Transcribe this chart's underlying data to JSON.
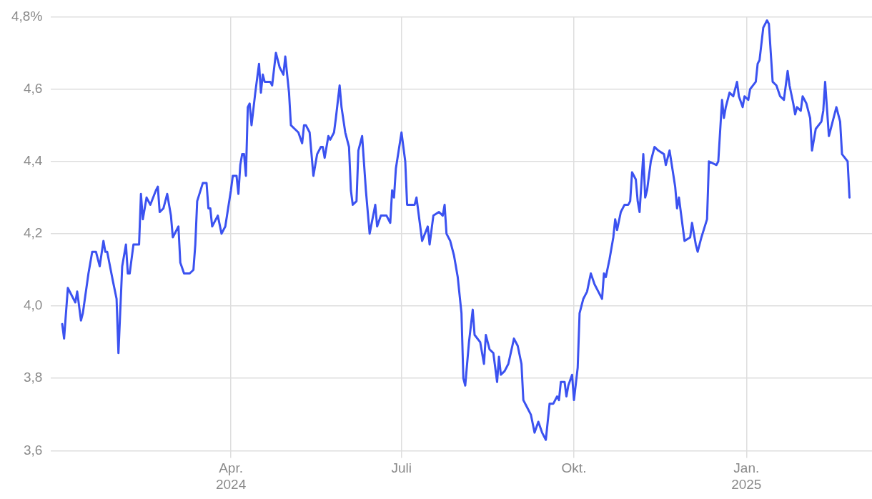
{
  "chart_data": {
    "type": "line",
    "x": [
      "2024-01-02",
      "2024-01-03",
      "2024-01-05",
      "2024-01-08",
      "2024-01-09",
      "2024-01-10",
      "2024-01-12",
      "2024-01-13",
      "2024-01-16",
      "2024-01-18",
      "2024-01-20",
      "2024-01-22",
      "2024-01-24",
      "2024-01-25",
      "2024-01-26",
      "2024-01-29",
      "2024-01-31",
      "2024-02-01",
      "2024-02-03",
      "2024-02-05",
      "2024-02-06",
      "2024-02-07",
      "2024-02-09",
      "2024-02-12",
      "2024-02-13",
      "2024-02-14",
      "2024-02-16",
      "2024-02-18",
      "2024-02-21",
      "2024-02-22",
      "2024-02-23",
      "2024-02-25",
      "2024-02-27",
      "2024-02-29",
      "2024-03-01",
      "2024-03-04",
      "2024-03-05",
      "2024-03-07",
      "2024-03-10",
      "2024-03-12",
      "2024-03-13",
      "2024-03-14",
      "2024-03-17",
      "2024-03-19",
      "2024-03-20",
      "2024-03-21",
      "2024-03-22",
      "2024-03-25",
      "2024-03-27",
      "2024-03-29",
      "2024-04-01",
      "2024-04-02",
      "2024-04-04",
      "2024-04-05",
      "2024-04-06",
      "2024-04-07",
      "2024-04-08",
      "2024-04-09",
      "2024-04-10",
      "2024-04-11",
      "2024-04-12",
      "2024-04-14",
      "2024-04-16",
      "2024-04-17",
      "2024-04-18",
      "2024-04-19",
      "2024-04-22",
      "2024-04-23",
      "2024-04-25",
      "2024-04-27",
      "2024-04-29",
      "2024-04-30",
      "2024-05-02",
      "2024-05-03",
      "2024-05-05",
      "2024-05-07",
      "2024-05-09",
      "2024-05-10",
      "2024-05-11",
      "2024-05-13",
      "2024-05-15",
      "2024-05-17",
      "2024-05-19",
      "2024-05-20",
      "2024-05-21",
      "2024-05-23",
      "2024-05-24",
      "2024-05-26",
      "2024-05-27",
      "2024-05-29",
      "2024-05-30",
      "2024-06-01",
      "2024-06-03",
      "2024-06-04",
      "2024-06-05",
      "2024-06-07",
      "2024-06-08",
      "2024-06-10",
      "2024-06-12",
      "2024-06-14",
      "2024-06-17",
      "2024-06-18",
      "2024-06-20",
      "2024-06-23",
      "2024-06-25",
      "2024-06-26",
      "2024-06-27",
      "2024-06-28",
      "2024-07-01",
      "2024-07-03",
      "2024-07-04",
      "2024-07-08",
      "2024-07-09",
      "2024-07-11",
      "2024-07-12",
      "2024-07-15",
      "2024-07-16",
      "2024-07-18",
      "2024-07-21",
      "2024-07-23",
      "2024-07-24",
      "2024-07-25",
      "2024-07-27",
      "2024-07-29",
      "2024-07-31",
      "2024-08-02",
      "2024-08-03",
      "2024-08-04",
      "2024-08-06",
      "2024-08-08",
      "2024-08-09",
      "2024-08-12",
      "2024-08-14",
      "2024-08-15",
      "2024-08-17",
      "2024-08-19",
      "2024-08-21",
      "2024-08-22",
      "2024-08-23",
      "2024-08-25",
      "2024-08-27",
      "2024-08-30",
      "2024-09-01",
      "2024-09-03",
      "2024-09-04",
      "2024-09-06",
      "2024-09-08",
      "2024-09-10",
      "2024-09-12",
      "2024-09-14",
      "2024-09-16",
      "2024-09-18",
      "2024-09-20",
      "2024-09-22",
      "2024-09-23",
      "2024-09-24",
      "2024-09-26",
      "2024-09-27",
      "2024-09-28",
      "2024-09-30",
      "2024-10-01",
      "2024-10-03",
      "2024-10-04",
      "2024-10-06",
      "2024-10-08",
      "2024-10-10",
      "2024-10-12",
      "2024-10-14",
      "2024-10-16",
      "2024-10-17",
      "2024-10-18",
      "2024-10-20",
      "2024-10-22",
      "2024-10-23",
      "2024-10-24",
      "2024-10-26",
      "2024-10-28",
      "2024-10-30",
      "2024-10-31",
      "2024-11-01",
      "2024-11-03",
      "2024-11-04",
      "2024-11-05",
      "2024-11-07",
      "2024-11-08",
      "2024-11-09",
      "2024-11-11",
      "2024-11-13",
      "2024-11-15",
      "2024-11-18",
      "2024-11-19",
      "2024-11-21",
      "2024-11-24",
      "2024-11-25",
      "2024-11-26",
      "2024-11-29",
      "2024-12-02",
      "2024-12-03",
      "2024-12-05",
      "2024-12-06",
      "2024-12-08",
      "2024-12-11",
      "2024-12-12",
      "2024-12-16",
      "2024-12-17",
      "2024-12-19",
      "2024-12-20",
      "2024-12-21",
      "2024-12-23",
      "2024-12-25",
      "2024-12-27",
      "2024-12-28",
      "2024-12-30",
      "2024-12-31",
      "2025-01-02",
      "2025-01-03",
      "2025-01-06",
      "2025-01-07",
      "2025-01-08",
      "2025-01-10",
      "2025-01-12",
      "2025-01-13",
      "2025-01-15",
      "2025-01-17",
      "2025-01-19",
      "2025-01-21",
      "2025-01-23",
      "2025-01-24",
      "2025-01-26",
      "2025-01-27",
      "2025-01-28",
      "2025-01-30",
      "2025-01-31",
      "2025-02-02",
      "2025-02-04",
      "2025-02-05",
      "2025-02-07",
      "2025-02-10",
      "2025-02-11",
      "2025-02-12",
      "2025-02-14",
      "2025-02-16",
      "2025-02-18",
      "2025-02-20",
      "2025-02-21",
      "2025-02-24",
      "2025-02-25"
    ],
    "series": [
      {
        "color": "#3b52f0",
        "values": [
          3.95,
          3.91,
          4.05,
          4.02,
          4.01,
          4.04,
          3.96,
          3.98,
          4.09,
          4.15,
          4.15,
          4.11,
          4.18,
          4.15,
          4.15,
          4.07,
          4.02,
          3.87,
          4.11,
          4.17,
          4.09,
          4.09,
          4.17,
          4.17,
          4.31,
          4.24,
          4.3,
          4.28,
          4.32,
          4.33,
          4.26,
          4.27,
          4.31,
          4.25,
          4.19,
          4.22,
          4.12,
          4.09,
          4.09,
          4.1,
          4.17,
          4.29,
          4.34,
          4.34,
          4.27,
          4.27,
          4.22,
          4.25,
          4.2,
          4.22,
          4.32,
          4.36,
          4.36,
          4.31,
          4.39,
          4.42,
          4.42,
          4.36,
          4.55,
          4.56,
          4.5,
          4.59,
          4.67,
          4.59,
          4.64,
          4.62,
          4.62,
          4.61,
          4.7,
          4.66,
          4.64,
          4.69,
          4.59,
          4.5,
          4.49,
          4.48,
          4.45,
          4.5,
          4.5,
          4.48,
          4.36,
          4.42,
          4.44,
          4.44,
          4.41,
          4.47,
          4.46,
          4.48,
          4.52,
          4.61,
          4.55,
          4.48,
          4.44,
          4.32,
          4.28,
          4.29,
          4.43,
          4.47,
          4.32,
          4.2,
          4.28,
          4.22,
          4.25,
          4.25,
          4.23,
          4.32,
          4.3,
          4.38,
          4.48,
          4.4,
          4.28,
          4.28,
          4.3,
          4.22,
          4.18,
          4.22,
          4.17,
          4.25,
          4.26,
          4.25,
          4.28,
          4.2,
          4.18,
          4.14,
          4.08,
          3.98,
          3.8,
          3.78,
          3.9,
          3.99,
          3.92,
          3.9,
          3.84,
          3.92,
          3.88,
          3.87,
          3.79,
          3.86,
          3.81,
          3.82,
          3.84,
          3.91,
          3.89,
          3.84,
          3.74,
          3.72,
          3.7,
          3.65,
          3.68,
          3.65,
          3.63,
          3.73,
          3.73,
          3.75,
          3.74,
          3.79,
          3.79,
          3.75,
          3.78,
          3.81,
          3.74,
          3.83,
          3.98,
          4.02,
          4.04,
          4.09,
          4.06,
          4.04,
          4.02,
          4.09,
          4.08,
          4.13,
          4.19,
          4.24,
          4.21,
          4.26,
          4.28,
          4.28,
          4.29,
          4.37,
          4.35,
          4.29,
          4.26,
          4.42,
          4.3,
          4.32,
          4.4,
          4.44,
          4.43,
          4.42,
          4.39,
          4.43,
          4.33,
          4.27,
          4.3,
          4.18,
          4.19,
          4.23,
          4.17,
          4.15,
          4.19,
          4.24,
          4.4,
          4.39,
          4.4,
          4.57,
          4.52,
          4.55,
          4.59,
          4.58,
          4.62,
          4.58,
          4.55,
          4.58,
          4.57,
          4.6,
          4.62,
          4.67,
          4.68,
          4.77,
          4.79,
          4.78,
          4.62,
          4.61,
          4.58,
          4.57,
          4.65,
          4.61,
          4.56,
          4.53,
          4.55,
          4.54,
          4.58,
          4.56,
          4.52,
          4.43,
          4.49,
          4.51,
          4.54,
          4.62,
          4.47,
          4.51,
          4.55,
          4.51,
          4.42,
          4.4,
          4.3
        ]
      }
    ],
    "xlim": [
      "2023-12-27",
      "2025-03-09"
    ],
    "xticks": [
      {
        "value": "2024-04-01",
        "label": "Apr.\n2024"
      },
      {
        "value": "2024-07-01",
        "label": "Juli"
      },
      {
        "value": "2024-10-01",
        "label": "Okt."
      },
      {
        "value": "2025-01-01",
        "label": "Jan.\n2025"
      }
    ],
    "ylim": [
      3.6,
      4.8
    ],
    "yticks": [
      {
        "value": 3.6,
        "label": "3,6"
      },
      {
        "value": 3.8,
        "label": "3,8"
      },
      {
        "value": 4.0,
        "label": "4,0"
      },
      {
        "value": 4.2,
        "label": "4,2"
      },
      {
        "value": 4.4,
        "label": "4,4"
      },
      {
        "value": 4.6,
        "label": "4,6"
      },
      {
        "value": 4.8,
        "label": "4,8%"
      }
    ],
    "grid": true,
    "legend": false,
    "marker": "none",
    "line_style": "solid"
  }
}
